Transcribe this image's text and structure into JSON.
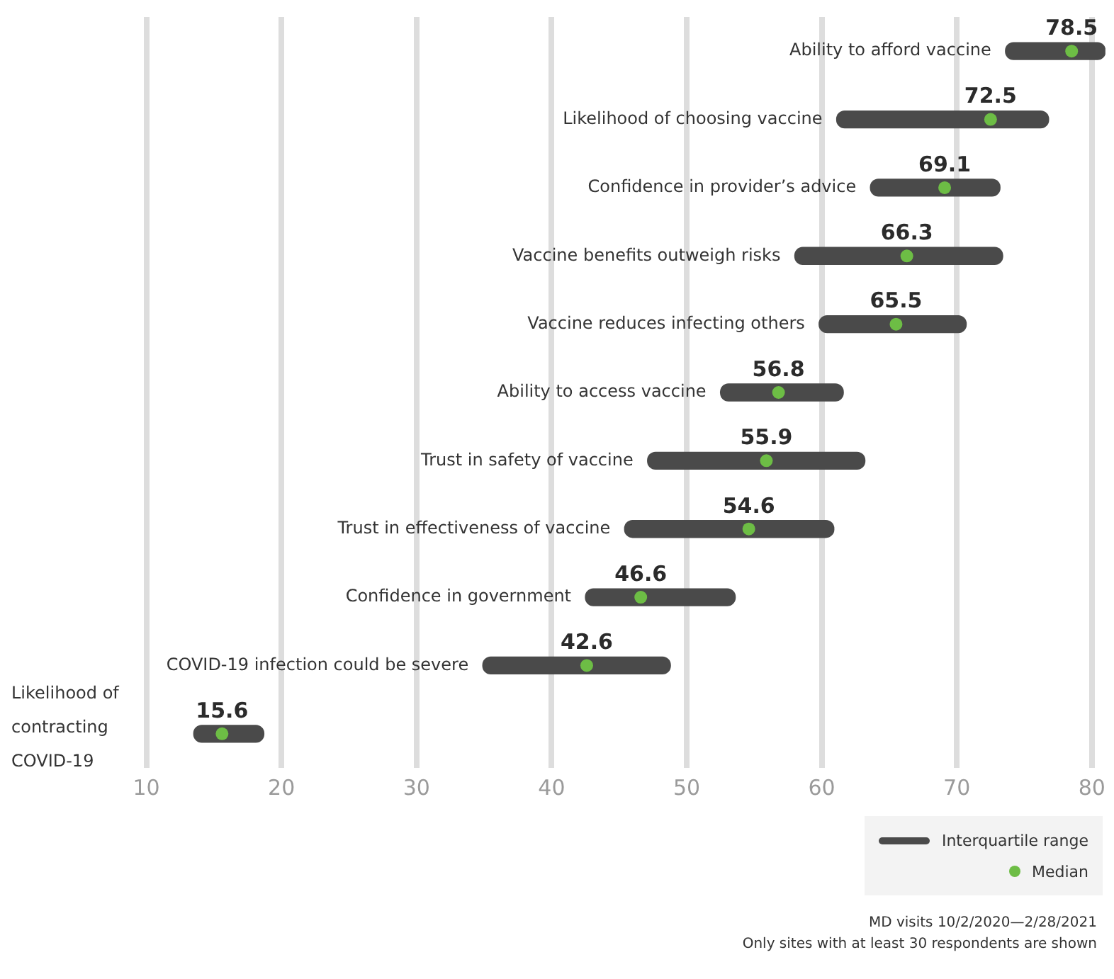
{
  "chart_data": {
    "type": "bar",
    "orientation": "horizontal",
    "categories": [
      "Ability to afford vaccine",
      "Likelihood of choosing vaccine",
      "Confidence in provider’s advice",
      "Vaccine benefits outweigh risks",
      "Vaccine reduces infecting others",
      "Ability to access vaccine",
      "Trust in safety of vaccine",
      "Trust in effectiveness of vaccine",
      "Confidence in government",
      "COVID-19 infection could be severe",
      "Likelihood of contracting COVID-19"
    ],
    "series": [
      {
        "name": "Interquartile range",
        "type": "bar",
        "color": "#4a4a4a",
        "base": [
          73.6,
          61.1,
          63.6,
          58.0,
          59.8,
          52.5,
          47.1,
          45.4,
          42.5,
          34.9,
          13.5
        ],
        "values": [
          7.4,
          15.7,
          9.6,
          15.4,
          10.9,
          9.1,
          16.1,
          15.5,
          11.1,
          13.9,
          5.2
        ]
      },
      {
        "name": "Median",
        "type": "scatter",
        "color": "#6dbd45",
        "values": [
          78.5,
          72.5,
          69.1,
          66.3,
          65.5,
          56.8,
          55.9,
          54.6,
          46.6,
          42.6,
          15.6
        ],
        "data_labels": true
      }
    ],
    "xlim": [
      0,
      81
    ],
    "xticks": [
      10,
      20,
      30,
      40,
      50,
      60,
      70,
      80
    ],
    "grid": "x",
    "tick_labels": "x",
    "legend": "bottom right",
    "marker": "circle",
    "annotations": [
      "MD visits 10/2/2020—2/28/2021",
      "Only sites with at least 30 respondents are shown"
    ]
  }
}
